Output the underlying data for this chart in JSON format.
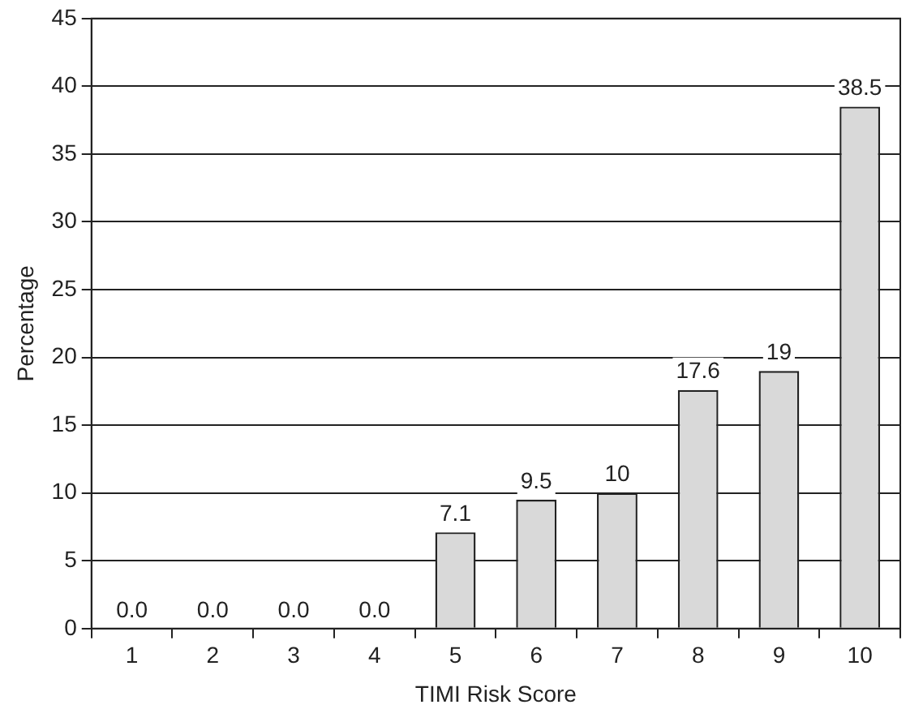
{
  "chart_data": {
    "type": "bar",
    "xlabel": "TIMI Risk Score",
    "ylabel": "Percentage",
    "categories": [
      "1",
      "2",
      "3",
      "4",
      "5",
      "6",
      "7",
      "8",
      "9",
      "10"
    ],
    "values": [
      0,
      0,
      0,
      0,
      7.1,
      9.5,
      10,
      17.6,
      19,
      38.5
    ],
    "value_labels": [
      "0.0",
      "0.0",
      "0.0",
      "0.0",
      "7.1",
      "9.5",
      "10",
      "17.6",
      "19",
      "38.5"
    ],
    "color": "#d9d9d9",
    "ylim": [
      0,
      45
    ],
    "yticks": [
      0,
      5,
      10,
      15,
      20,
      25,
      30,
      35,
      40,
      45
    ],
    "grid": "y",
    "legend": false
  }
}
